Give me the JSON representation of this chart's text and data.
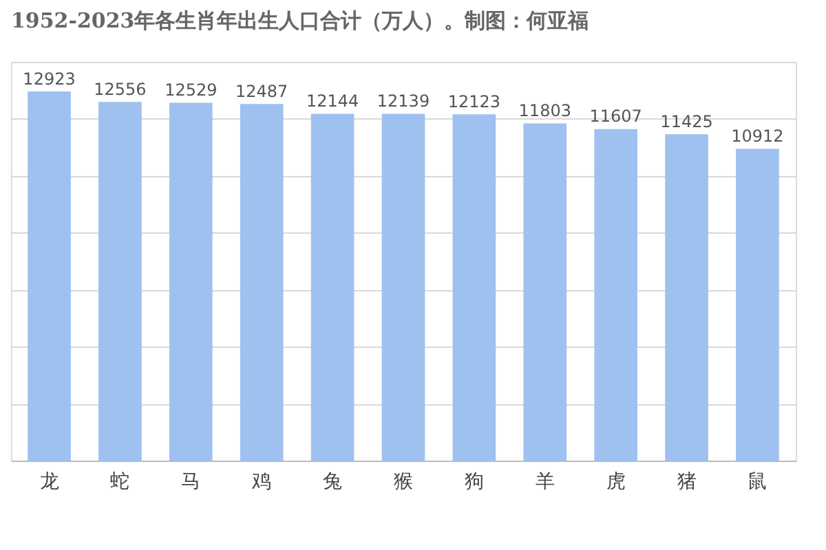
{
  "chart_data": {
    "type": "bar",
    "title": "1952-2023年各生肖年出生人口合计（万人）。制图：何亚福",
    "categories": [
      "龙",
      "蛇",
      "马",
      "鸡",
      "兔",
      "猴",
      "狗",
      "羊",
      "虎",
      "猪",
      "鼠"
    ],
    "values": [
      12923,
      12556,
      12529,
      12487,
      12144,
      12139,
      12123,
      11803,
      11607,
      11425,
      10912
    ],
    "color": "#9fc1f0",
    "ylim": [
      0,
      14000
    ],
    "yticks": [
      {
        "value": 0,
        "label": null
      },
      {
        "value": 2000,
        "label": null
      },
      {
        "value": 4000,
        "label": null
      },
      {
        "value": 6000,
        "label": null
      },
      {
        "value": 8000,
        "label": null
      },
      {
        "value": 10000,
        "label": null
      },
      {
        "value": 12000,
        "label": null
      },
      {
        "value": 14000,
        "label": null
      }
    ],
    "tick_labels": "x",
    "grid": "y",
    "data_labels": true
  }
}
